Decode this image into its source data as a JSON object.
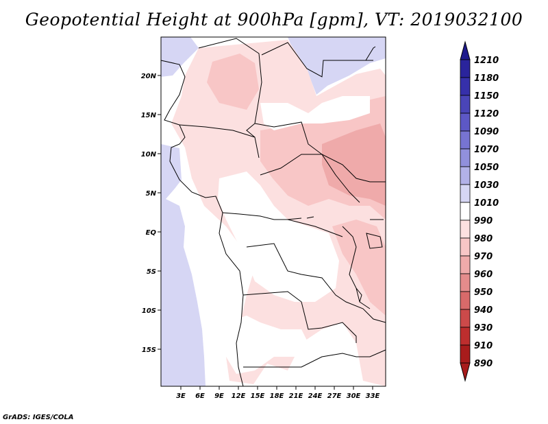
{
  "title": "Geopotential Height at 900hPa [gpm], VT: 2019032100",
  "credit": "GrADS: IGES/COLA",
  "map": {
    "lat_labels": [
      "20N",
      "15N",
      "10N",
      "5N",
      "EQ",
      "5S",
      "10S",
      "15S"
    ],
    "lon_labels": [
      "3E",
      "6E",
      "9E",
      "12E",
      "15E",
      "18E",
      "21E",
      "24E",
      "27E",
      "30E",
      "33E"
    ]
  },
  "colorbar": {
    "levels": [
      "1210",
      "1180",
      "1150",
      "1120",
      "1090",
      "1070",
      "1050",
      "1030",
      "1010",
      "990",
      "980",
      "970",
      "960",
      "950",
      "940",
      "930",
      "910",
      "890"
    ],
    "colors": [
      "#1e1a8c",
      "#2a249c",
      "#3630aa",
      "#4a45b8",
      "#5d58c6",
      "#7774d2",
      "#9190dc",
      "#b2b1e8",
      "#d6d6f4",
      "#ffffff",
      "#fce0e0",
      "#f8c6c6",
      "#efaaaa",
      "#e48c8c",
      "#d86a6a",
      "#cc4a4a",
      "#bd2e2e",
      "#a81c1c"
    ]
  }
}
